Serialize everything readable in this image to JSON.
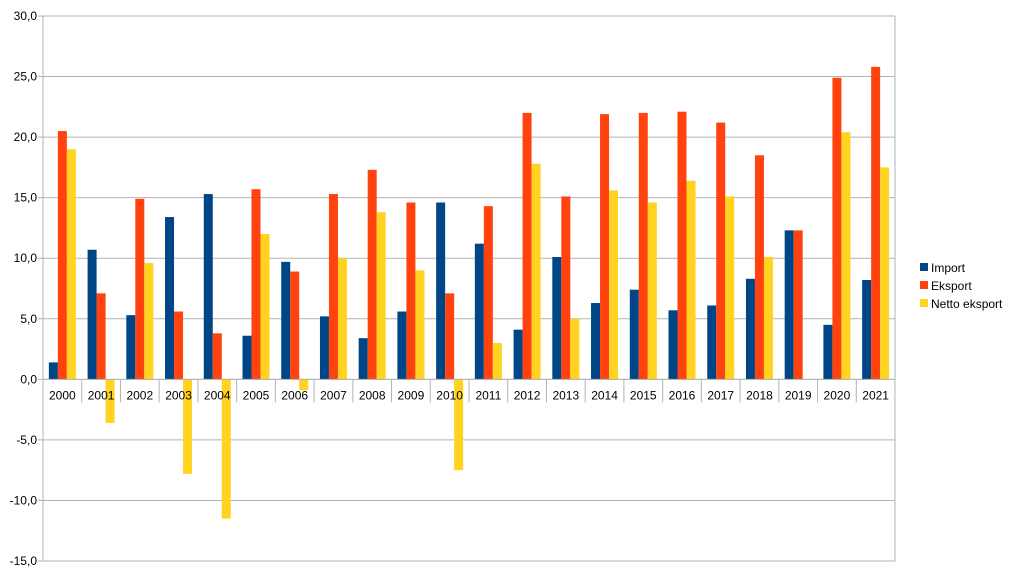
{
  "chart_data": {
    "type": "bar",
    "title": "",
    "xlabel": "",
    "ylabel": "",
    "ylim": [
      -15,
      30
    ],
    "ytick_step": 5,
    "ytick_labels": [
      "-15,0",
      "-10,0",
      "-5,0",
      "0,0",
      "5,0",
      "10,0",
      "15,0",
      "20,0",
      "25,0",
      "30,0"
    ],
    "grid": true,
    "legend_position": "right",
    "categories": [
      "2000",
      "2001",
      "2002",
      "2003",
      "2004",
      "2005",
      "2006",
      "2007",
      "2008",
      "2009",
      "2010",
      "2011",
      "2012",
      "2013",
      "2014",
      "2015",
      "2016",
      "2017",
      "2018",
      "2019",
      "2020",
      "2021"
    ],
    "series": [
      {
        "name": "Import",
        "color": "#004586",
        "values": [
          1.4,
          10.7,
          5.3,
          13.4,
          15.3,
          3.6,
          9.7,
          5.2,
          3.4,
          5.6,
          14.6,
          11.2,
          4.1,
          10.1,
          6.3,
          7.4,
          5.7,
          6.1,
          8.3,
          12.3,
          4.5,
          8.2
        ]
      },
      {
        "name": "Eksport",
        "color": "#ff420e",
        "values": [
          20.5,
          7.1,
          14.9,
          5.6,
          3.8,
          15.7,
          8.9,
          15.3,
          17.3,
          14.6,
          7.1,
          14.3,
          22.0,
          15.1,
          21.9,
          22.0,
          22.1,
          21.2,
          18.5,
          12.3,
          24.9,
          25.8
        ]
      },
      {
        "name": "Netto eksport",
        "color": "#ffd320",
        "values": [
          19.0,
          -3.6,
          9.6,
          -7.8,
          -11.5,
          12.0,
          -0.9,
          10.0,
          13.8,
          9.0,
          -7.5,
          3.0,
          17.8,
          5.0,
          15.6,
          14.6,
          16.4,
          15.1,
          10.1,
          0.0,
          20.4,
          17.5
        ]
      }
    ]
  }
}
